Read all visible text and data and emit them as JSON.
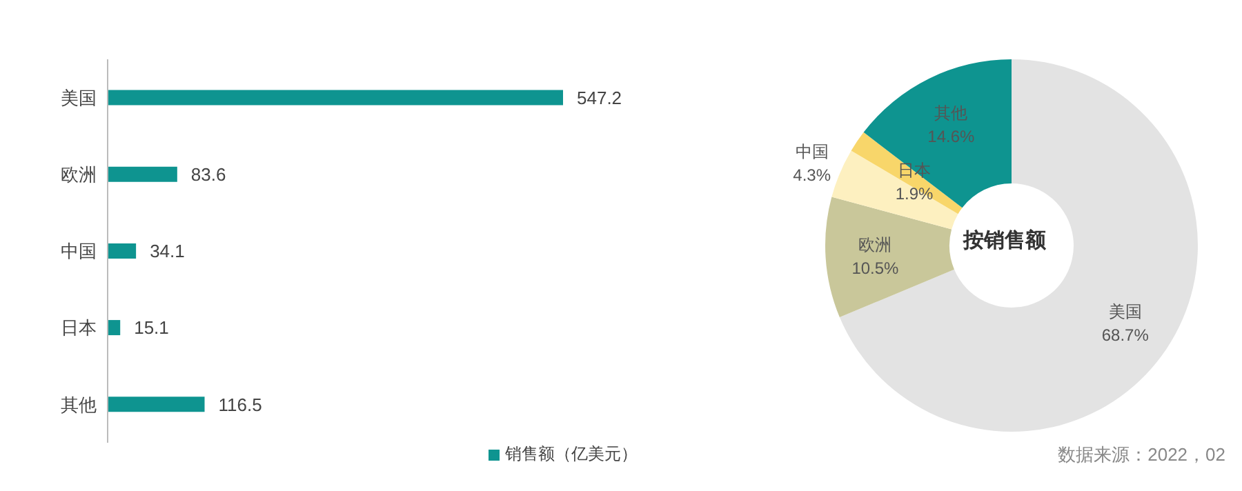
{
  "chart_data": [
    {
      "type": "bar",
      "orientation": "horizontal",
      "categories": [
        "美国",
        "欧洲",
        "中国",
        "日本",
        "其他"
      ],
      "series": [
        {
          "name": "销售额（亿美元）",
          "color": "#0e9490",
          "values": [
            547.2,
            83.6,
            34.1,
            15.1,
            116.5
          ]
        }
      ],
      "data_labels": true,
      "legend": "bottom",
      "grid": false
    },
    {
      "type": "donut",
      "title": "按销售额",
      "categories": [
        "美国",
        "欧洲",
        "中国",
        "日本",
        "其他"
      ],
      "values": [
        68.7,
        10.5,
        4.3,
        1.9,
        14.6
      ],
      "value_labels": [
        "68.7%",
        "10.5%",
        "4.3%",
        "1.9%",
        "14.6%"
      ],
      "colors": [
        "#e3e3e3",
        "#c9c79a",
        "#fdf0c0",
        "#f8d66a",
        "#0e9490"
      ],
      "annotations": [
        "数据来源：2022，02"
      ]
    }
  ]
}
